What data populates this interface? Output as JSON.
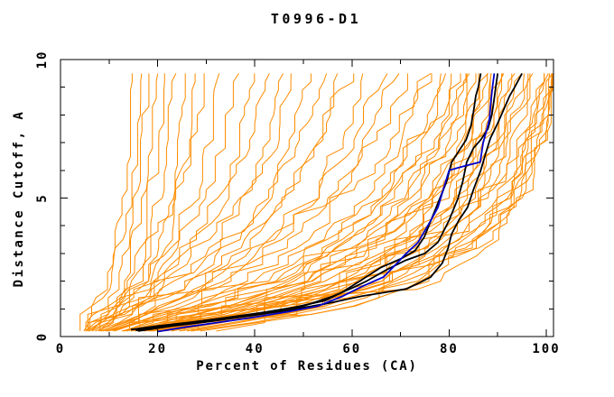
{
  "chart_data": {
    "type": "line",
    "title": "T0996-D1",
    "xlabel": "Percent of Residues (CA)",
    "ylabel": "Distance Cutoff, A",
    "xlim": [
      0,
      101.5
    ],
    "ylim": [
      0,
      10
    ],
    "x_major_ticks": [
      0,
      20,
      40,
      60,
      80,
      100
    ],
    "x_minor_ticks": [
      10,
      30,
      50,
      70,
      90
    ],
    "y_major_ticks": [
      0,
      5,
      10
    ],
    "y_minor_ticks": [
      1,
      2,
      3,
      4,
      6,
      7,
      8,
      9
    ],
    "grid": false,
    "legend": false,
    "frame": "box-with-mirrored-ticks",
    "colors": {
      "model_curves": "#FF8C00",
      "selected_curves": "#000000",
      "highlight_curve": "#0000CC",
      "frame": "#000000",
      "background": "#FFFFFF"
    },
    "series_groups": {
      "orange_models": {
        "description": "ensemble of model curves: percent of residues (x) under each distance cutoff (y)",
        "color_key": "model_curves",
        "anchor_cutoffs": [
          0.2,
          1,
          2,
          3.5,
          5,
          7,
          9.5
        ],
        "percent_at_cutoff": [
          [
            4.5,
            7.5,
            9.5,
            11,
            12.5,
            13.5,
            14.5
          ],
          [
            5,
            8,
            10.5,
            12.5,
            14,
            15,
            16
          ],
          [
            5,
            9,
            12,
            13.5,
            15,
            16.5,
            17.5
          ],
          [
            5.5,
            10,
            13,
            15.5,
            17,
            18,
            19
          ],
          [
            6,
            11,
            14.5,
            17,
            18.5,
            20,
            21
          ],
          [
            6,
            12,
            16,
            18.5,
            20,
            21.5,
            23
          ],
          [
            6.5,
            13,
            17.5,
            20.5,
            22.5,
            24,
            25.5
          ],
          [
            7,
            14.5,
            19,
            22,
            24.5,
            26.5,
            28
          ],
          [
            5,
            10,
            15,
            20,
            24,
            27,
            30
          ],
          [
            6,
            13,
            19,
            24,
            27.5,
            30.5,
            33
          ],
          [
            5.5,
            11,
            18,
            25,
            30,
            33.5,
            36
          ],
          [
            7,
            15,
            22,
            28,
            33,
            36.5,
            39
          ],
          [
            6,
            12,
            20,
            28,
            34,
            38.5,
            42
          ],
          [
            7.5,
            16,
            24,
            32,
            38,
            42,
            45
          ],
          [
            6.5,
            14,
            22,
            31,
            38,
            44,
            48
          ],
          [
            8,
            18,
            27,
            36,
            42,
            47,
            51
          ],
          [
            7,
            15,
            25,
            35,
            43,
            49,
            54
          ],
          [
            8.5,
            20,
            30,
            40,
            47,
            53,
            57
          ],
          [
            7.5,
            17,
            28,
            38,
            46,
            53,
            60
          ],
          [
            9,
            22,
            33,
            44,
            52,
            58,
            63
          ],
          [
            8,
            19,
            31,
            43,
            52,
            60,
            66
          ],
          [
            9.5,
            24,
            36,
            48,
            56,
            63,
            69
          ],
          [
            8.5,
            21,
            34,
            46,
            56,
            65,
            72
          ],
          [
            10,
            26,
            39,
            51,
            60,
            68,
            75
          ],
          [
            10,
            28,
            42,
            54,
            63,
            70,
            77
          ],
          [
            11,
            25,
            40,
            55,
            65,
            73,
            79
          ],
          [
            12,
            30,
            46,
            58,
            66,
            74,
            80
          ],
          [
            11,
            27,
            44,
            58,
            68,
            76,
            81
          ],
          [
            13,
            32,
            48,
            60,
            69,
            77,
            82
          ],
          [
            12,
            29,
            45,
            60,
            70,
            78,
            83
          ],
          [
            14,
            34,
            50,
            63,
            71,
            79,
            84
          ],
          [
            13,
            31,
            48,
            63,
            73,
            80,
            85
          ],
          [
            15,
            36,
            52,
            65,
            73,
            81,
            86
          ],
          [
            14,
            33,
            50,
            66,
            75,
            82,
            86.5
          ],
          [
            16,
            38,
            54,
            67,
            75,
            83,
            87
          ],
          [
            15,
            35,
            52,
            68,
            77,
            84,
            88
          ],
          [
            17,
            40,
            56,
            69,
            77,
            85,
            88.5
          ],
          [
            16,
            37,
            55,
            70,
            79,
            86,
            89
          ],
          [
            18,
            42,
            58,
            71,
            79,
            86,
            90
          ],
          [
            17,
            39,
            57,
            72,
            81,
            87,
            90.5
          ],
          [
            19,
            44,
            60,
            73,
            81,
            88,
            91
          ],
          [
            18,
            41,
            59,
            74,
            83,
            89,
            92
          ],
          [
            20,
            46,
            62,
            75,
            83,
            89,
            93
          ],
          [
            19,
            43,
            61,
            76,
            85,
            90,
            94
          ],
          [
            21,
            48,
            64,
            77,
            85,
            91,
            95
          ],
          [
            20,
            45,
            63,
            78,
            87,
            92,
            96
          ],
          [
            22,
            50,
            66,
            79,
            87,
            93,
            97
          ],
          [
            21,
            47,
            65,
            80,
            89,
            94,
            98
          ],
          [
            23,
            52,
            68,
            81,
            89,
            95,
            99
          ],
          [
            22,
            49,
            67,
            82,
            91,
            96,
            100
          ],
          [
            24,
            54,
            70,
            83,
            91,
            97,
            100.5
          ],
          [
            23,
            51,
            69,
            84,
            93,
            98,
            101
          ],
          [
            26,
            55,
            72,
            85,
            92,
            96.5,
            99.5
          ],
          [
            28,
            58,
            74,
            86,
            93,
            97.5,
            100.5
          ],
          [
            30,
            60,
            76,
            87,
            94,
            98,
            101
          ],
          [
            25,
            53,
            71,
            86,
            94,
            98.5,
            101
          ],
          [
            27,
            57,
            75,
            88,
            95,
            99,
            101.3
          ],
          [
            32,
            62,
            78,
            89,
            95.5,
            99.5,
            101.3
          ]
        ]
      },
      "black_models": {
        "color_key": "selected_curves",
        "curves": [
          [
            [
              14.5,
              0.25
            ],
            [
              20,
              0.38
            ],
            [
              27,
              0.52
            ],
            [
              34,
              0.68
            ],
            [
              41,
              0.85
            ],
            [
              48,
              1.05
            ],
            [
              54.5,
              1.3
            ],
            [
              58,
              1.6
            ],
            [
              62,
              2.05
            ],
            [
              66,
              2.5
            ],
            [
              70,
              2.8
            ],
            [
              73,
              3.1
            ],
            [
              74.9,
              3.6
            ],
            [
              76.5,
              4.3
            ],
            [
              78.3,
              5.08
            ],
            [
              79.5,
              5.6
            ],
            [
              80.5,
              6.29
            ],
            [
              82,
              6.7
            ],
            [
              83.5,
              7.1
            ],
            [
              84.5,
              7.6
            ],
            [
              85,
              8.1
            ],
            [
              85.5,
              8.7
            ],
            [
              86,
              9.0
            ],
            [
              86.5,
              9.5
            ]
          ],
          [
            [
              15.5,
              0.22
            ],
            [
              22,
              0.4
            ],
            [
              29,
              0.55
            ],
            [
              36,
              0.72
            ],
            [
              43,
              0.9
            ],
            [
              50,
              1.1
            ],
            [
              56,
              1.45
            ],
            [
              60,
              1.75
            ],
            [
              63,
              2.0
            ],
            [
              67,
              2.4
            ],
            [
              71,
              2.75
            ],
            [
              75,
              3.0
            ],
            [
              77.7,
              3.4
            ],
            [
              80,
              4.2
            ],
            [
              81.8,
              4.98
            ],
            [
              82.8,
              5.6
            ],
            [
              83.6,
              6.29
            ],
            [
              85,
              6.8
            ],
            [
              86.5,
              7.1
            ],
            [
              88,
              7.5
            ],
            [
              88.8,
              8.0
            ],
            [
              89.3,
              8.6
            ],
            [
              89.6,
              9.0
            ],
            [
              90,
              9.5
            ]
          ],
          [
            [
              16,
              0.2
            ],
            [
              23,
              0.38
            ],
            [
              31,
              0.55
            ],
            [
              39,
              0.75
            ],
            [
              47,
              0.95
            ],
            [
              55,
              1.2
            ],
            [
              62,
              1.46
            ],
            [
              67,
              1.6
            ],
            [
              71.2,
              1.72
            ],
            [
              74,
              1.95
            ],
            [
              76.2,
              2.15
            ],
            [
              78.6,
              2.65
            ],
            [
              79.8,
              3.2
            ],
            [
              80.5,
              3.7
            ],
            [
              82,
              4.2
            ],
            [
              83.8,
              4.66
            ],
            [
              85,
              5.3
            ],
            [
              86.5,
              6.0
            ],
            [
              87.5,
              6.6
            ],
            [
              88.5,
              7.16
            ],
            [
              90,
              7.7
            ],
            [
              91,
              8.1
            ],
            [
              92.5,
              8.7
            ],
            [
              93.5,
              9.0
            ],
            [
              95,
              9.5
            ]
          ]
        ]
      },
      "blue_model": {
        "color_key": "highlight_curve",
        "curve": [
          [
            20,
            0.18
          ],
          [
            26,
            0.35
          ],
          [
            33,
            0.52
          ],
          [
            40,
            0.7
          ],
          [
            47,
            0.9
          ],
          [
            53,
            1.1
          ],
          [
            58,
            1.45
          ],
          [
            62,
            1.8
          ],
          [
            66.5,
            2.15
          ],
          [
            69,
            2.6
          ],
          [
            71,
            2.97
          ],
          [
            73.6,
            3.4
          ],
          [
            75.8,
            4.06
          ],
          [
            77.7,
            4.66
          ],
          [
            78.8,
            5.3
          ],
          [
            80,
            6.0
          ],
          [
            83,
            6.15
          ],
          [
            86.4,
            6.3
          ],
          [
            87,
            7.0
          ],
          [
            87.8,
            7.5
          ],
          [
            88.3,
            7.85
          ],
          [
            88.5,
            8.3
          ],
          [
            88.8,
            8.8
          ],
          [
            89,
            9.1
          ],
          [
            89.3,
            9.5
          ]
        ]
      }
    }
  }
}
